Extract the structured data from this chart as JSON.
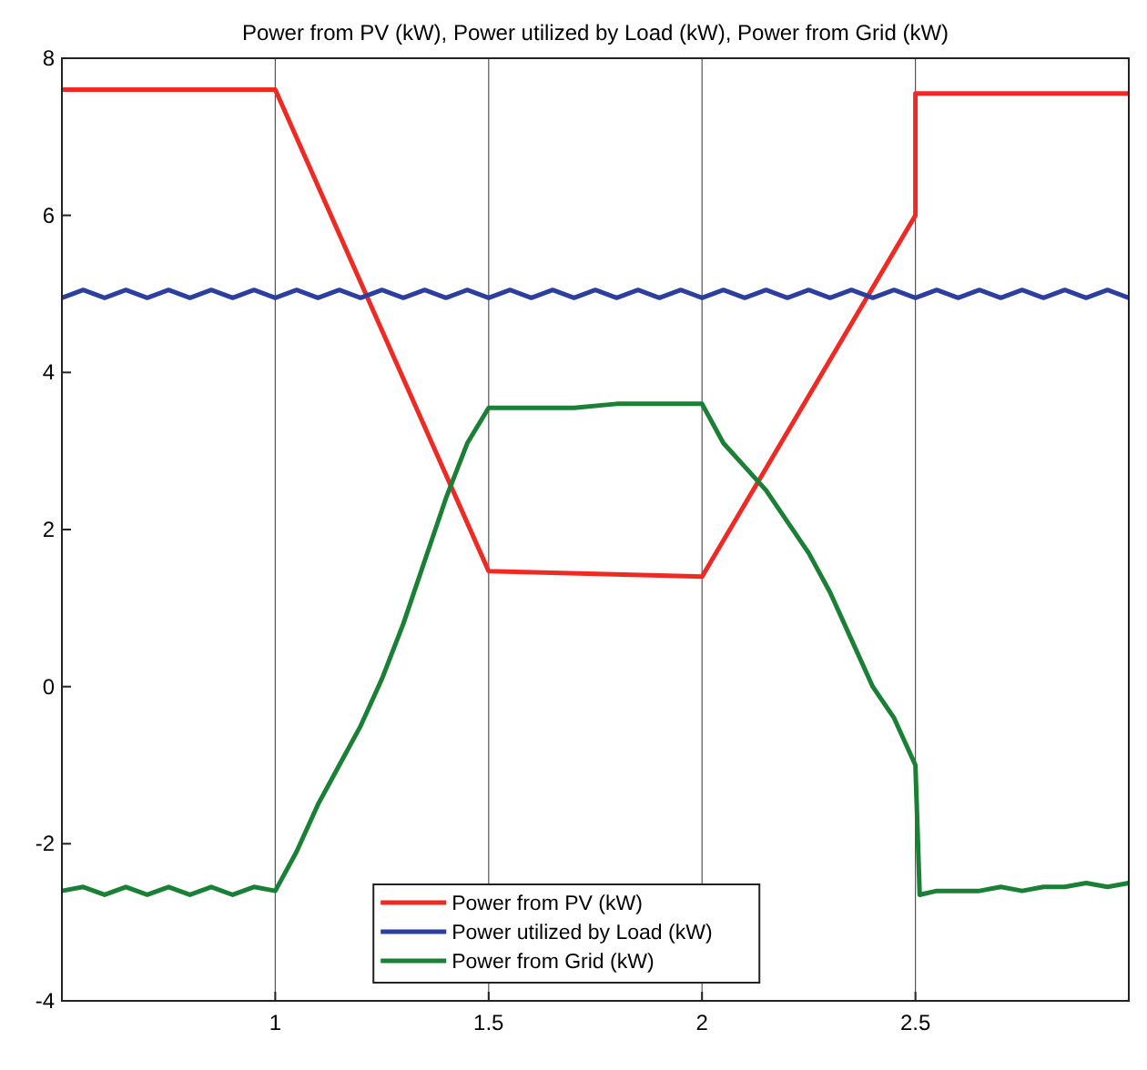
{
  "chart_data": {
    "type": "line",
    "title": "Power from PV (kW), Power utilized by Load (kW), Power from Grid (kW)",
    "x": [
      0.5,
      1.0,
      1.5,
      2.0,
      2.5,
      2.5,
      3.0
    ],
    "xlim": [
      0.5,
      3
    ],
    "ylim": [
      -4,
      8
    ],
    "xticks": [
      1,
      1.5,
      2,
      2.5
    ],
    "yticks": [
      -4,
      -2,
      0,
      2,
      4,
      6,
      8
    ],
    "grid": "x",
    "legend": "bottom",
    "line_style": "solid",
    "marker": "none",
    "series": [
      {
        "name": "Power from PV (kW)",
        "color": "#ee2a24",
        "values": [
          7.6,
          7.6,
          1.47,
          1.4,
          6.0,
          7.55,
          7.55
        ]
      },
      {
        "name": "Power utilized by Load (kW)",
        "color": "#2c3f9e",
        "x": [
          0.5,
          0.55,
          0.6,
          0.65,
          0.7,
          0.75,
          0.8,
          0.85,
          0.9,
          0.95,
          1.0,
          1.05,
          1.1,
          1.15,
          1.2,
          1.25,
          1.3,
          1.35,
          1.4,
          1.45,
          1.5,
          1.55,
          1.6,
          1.65,
          1.7,
          1.75,
          1.8,
          1.85,
          1.9,
          1.95,
          2.0,
          2.05,
          2.1,
          2.15,
          2.2,
          2.25,
          2.3,
          2.35,
          2.4,
          2.45,
          2.5,
          2.55,
          2.6,
          2.65,
          2.7,
          2.75,
          2.8,
          2.85,
          2.9,
          2.95,
          3.0
        ],
        "values": [
          4.95,
          5.05,
          4.95,
          5.05,
          4.95,
          5.05,
          4.95,
          5.05,
          4.95,
          5.05,
          4.95,
          5.05,
          4.95,
          5.05,
          4.95,
          5.05,
          4.95,
          5.05,
          4.95,
          5.05,
          4.95,
          5.05,
          4.95,
          5.05,
          4.95,
          5.05,
          4.95,
          5.05,
          4.95,
          5.05,
          4.95,
          5.05,
          4.95,
          5.05,
          4.95,
          5.05,
          4.95,
          5.05,
          4.95,
          5.05,
          4.95,
          5.05,
          4.95,
          5.05,
          4.95,
          5.05,
          4.95,
          5.05,
          4.95,
          5.05,
          4.95
        ]
      },
      {
        "name": "Power from Grid (kW)",
        "color": "#1a8035",
        "x": [
          0.5,
          0.55,
          0.6,
          0.65,
          0.7,
          0.75,
          0.8,
          0.85,
          0.9,
          0.95,
          1.0,
          1.02,
          1.05,
          1.1,
          1.15,
          1.2,
          1.25,
          1.3,
          1.35,
          1.4,
          1.45,
          1.5,
          1.6,
          1.7,
          1.8,
          1.9,
          2.0,
          2.05,
          2.1,
          2.15,
          2.2,
          2.25,
          2.3,
          2.35,
          2.4,
          2.45,
          2.5,
          2.51,
          2.55,
          2.6,
          2.65,
          2.7,
          2.75,
          2.8,
          2.85,
          2.9,
          2.95,
          3.0
        ],
        "values": [
          -2.6,
          -2.55,
          -2.65,
          -2.55,
          -2.65,
          -2.55,
          -2.65,
          -2.55,
          -2.65,
          -2.55,
          -2.6,
          -2.4,
          -2.1,
          -1.5,
          -1.0,
          -0.5,
          0.1,
          0.8,
          1.6,
          2.4,
          3.1,
          3.55,
          3.55,
          3.55,
          3.6,
          3.6,
          3.6,
          3.1,
          2.8,
          2.5,
          2.1,
          1.7,
          1.2,
          0.6,
          0.0,
          -0.4,
          -1.0,
          -2.65,
          -2.6,
          -2.6,
          -2.6,
          -2.55,
          -2.6,
          -2.55,
          -2.55,
          -2.5,
          -2.55,
          -2.5
        ]
      }
    ]
  }
}
